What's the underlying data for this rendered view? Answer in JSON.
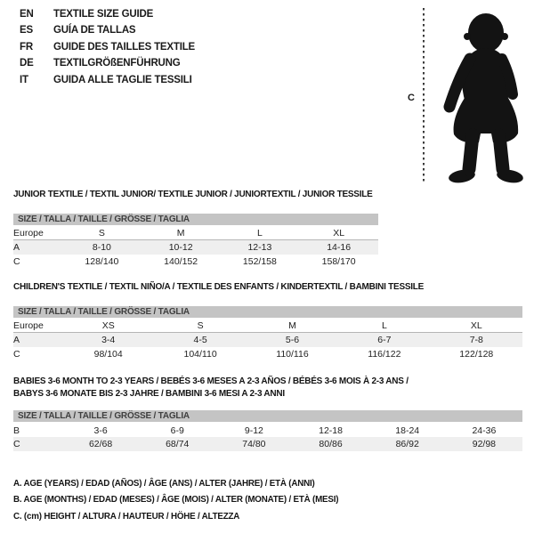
{
  "languages": [
    {
      "code": "EN",
      "title": "TEXTILE SIZE GUIDE"
    },
    {
      "code": "ES",
      "title": "GUÍA DE TALLAS"
    },
    {
      "code": "FR",
      "title": "GUIDE DES TAILLES TEXTILE"
    },
    {
      "code": "DE",
      "title": "TEXTILGRÖßENFÜHRUNG"
    },
    {
      "code": "IT",
      "title": "GUIDA ALLE TAGLIE TESSILI"
    }
  ],
  "figure": {
    "measure_label": "C",
    "illustration": "baby-silhouette"
  },
  "sections": [
    {
      "title_lines": [
        "JUNIOR TEXTILE / TEXTIL JUNIOR/ TEXTILE JUNIOR / JUNIORTEXTIL / JUNIOR TESSILE"
      ],
      "size_header": "SIZE / TALLA / TAILLE / GRÖSSE / TAGLIA",
      "europe_row": {
        "label": "Europe",
        "values": [
          "S",
          "M",
          "L",
          "XL"
        ]
      },
      "rows": [
        {
          "label": "A",
          "values": [
            "8-10",
            "10-12",
            "12-13",
            "14-16"
          ],
          "striped": true
        },
        {
          "label": "C",
          "values": [
            "128/140",
            "140/152",
            "152/158",
            "158/170"
          ],
          "striped": false
        }
      ]
    },
    {
      "title_lines": [
        "CHILDREN'S TEXTILE / TEXTIL NIÑO/A / TEXTILE DES ENFANTS / KINDERTEXTIL / BAMBINI TESSILE"
      ],
      "size_header": "SIZE / TALLA / TAILLE / GRÖSSE / TAGLIA",
      "europe_row": {
        "label": "Europe",
        "values": [
          "XS",
          "S",
          "M",
          "L",
          "XL"
        ]
      },
      "rows": [
        {
          "label": "A",
          "values": [
            "3-4",
            "4-5",
            "5-6",
            "6-7",
            "7-8"
          ],
          "striped": true
        },
        {
          "label": "C",
          "values": [
            "98/104",
            "104/110",
            "110/116",
            "116/122",
            "122/128"
          ],
          "striped": false
        }
      ]
    },
    {
      "title_lines": [
        "BABIES 3-6 MONTH TO 2-3 YEARS / BEBÉS 3-6 MESES A 2-3 AÑOS / BÉBÉS 3-6 MOIS À 2-3 ANS /",
        "BABYS 3-6 MONATE BIS 2-3 JAHRE / BAMBINI 3-6 MESI A 2-3 ANNI"
      ],
      "size_header": "SIZE / TALLA / TAILLE / GRÖSSE / TAGLIA",
      "europe_row": null,
      "rows": [
        {
          "label": "B",
          "values": [
            "3-6",
            "6-9",
            "9-12",
            "12-18",
            "18-24",
            "24-36"
          ],
          "striped": false
        },
        {
          "label": "C",
          "values": [
            "62/68",
            "68/74",
            "74/80",
            "80/86",
            "86/92",
            "92/98"
          ],
          "striped": true
        }
      ]
    }
  ],
  "legend": [
    "A. AGE (YEARS) / EDAD (AÑOS) / ÂGE (ANS) / ALTER (JAHRE) / ETÀ (ANNI)",
    "B. AGE (MONTHS) / EDAD (MESES) / ÂGE (MOIS) / ALTER (MONATE) / ETÀ (MESI)",
    "C. (cm) HEIGHT / ALTURA / HAUTEUR / HÖHE / ALTEZZA"
  ],
  "colors": {
    "size_bar_bg": "#c4c4c4",
    "stripe_bg": "#efefef",
    "header_border": "#b5b5b5",
    "ink": "#1a1a1a",
    "silhouette": "#131313"
  }
}
